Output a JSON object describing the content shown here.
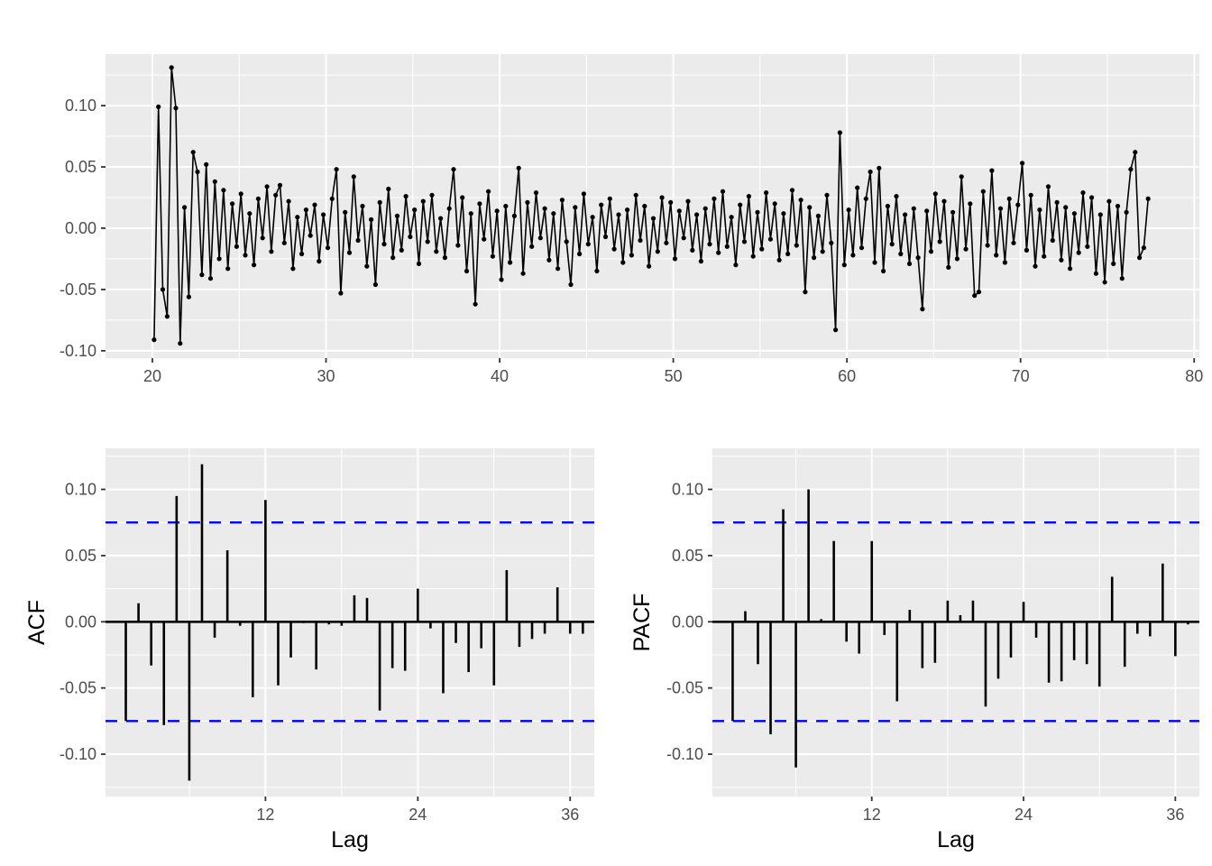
{
  "figure": {
    "background": "#FFFFFF",
    "panel_background": "#EBEBEB",
    "grid_major_color": "#FFFFFF",
    "grid_minor_color": "#F7F7F7",
    "series_color": "#000000",
    "conf_band_color": "#0000FF",
    "axis_text_color": "#4D4D4D",
    "axis_title_color": "#000000",
    "tick_mark_color": "#333333"
  },
  "chart_data": [
    {
      "name": "residual-series",
      "type": "line",
      "title": "",
      "xlabel": "",
      "ylabel": "",
      "marker": "point",
      "xlim": [
        17.3,
        80.3
      ],
      "ylim": [
        -0.106,
        0.142
      ],
      "x_ticks": {
        "values": [
          20,
          30,
          40,
          50,
          60,
          70,
          80
        ],
        "labels": [
          "20",
          "30",
          "40",
          "50",
          "60",
          "70",
          "80"
        ]
      },
      "x_minor": [
        25,
        35,
        45,
        55,
        65,
        75
      ],
      "y_ticks": {
        "values": [
          0.1,
          0.05,
          0.0,
          -0.05,
          -0.1
        ],
        "labels": [
          "0.10",
          "0.05",
          "0.00",
          "-0.05",
          "-0.10"
        ]
      },
      "y_minor": [
        0.125,
        0.075,
        0.025,
        -0.025,
        -0.075
      ],
      "x_start": 20.1,
      "x_step": 0.25,
      "values": [
        -0.091,
        0.099,
        -0.05,
        -0.072,
        0.131,
        0.098,
        -0.094,
        0.017,
        -0.056,
        0.062,
        0.046,
        -0.038,
        0.052,
        -0.041,
        0.038,
        -0.025,
        0.031,
        -0.033,
        0.02,
        -0.015,
        0.028,
        -0.022,
        0.012,
        -0.03,
        0.024,
        -0.008,
        0.034,
        -0.019,
        0.027,
        0.035,
        -0.012,
        0.022,
        -0.033,
        0.009,
        -0.021,
        0.015,
        -0.006,
        0.019,
        -0.027,
        0.011,
        -0.016,
        0.024,
        0.048,
        -0.053,
        0.013,
        -0.02,
        0.042,
        -0.01,
        0.018,
        -0.031,
        0.007,
        -0.046,
        0.021,
        -0.013,
        0.032,
        -0.024,
        0.01,
        -0.018,
        0.026,
        -0.007,
        0.015,
        -0.029,
        0.022,
        -0.011,
        0.027,
        -0.019,
        0.008,
        -0.024,
        0.016,
        0.048,
        -0.014,
        0.025,
        -0.035,
        0.012,
        -0.062,
        0.02,
        -0.009,
        0.03,
        -0.023,
        0.014,
        -0.042,
        0.018,
        -0.028,
        0.01,
        0.049,
        -0.037,
        0.021,
        -0.015,
        0.029,
        -0.008,
        0.016,
        -0.026,
        0.012,
        -0.033,
        0.023,
        -0.011,
        -0.046,
        0.017,
        -0.021,
        0.028,
        -0.013,
        0.009,
        -0.035,
        0.019,
        -0.007,
        0.024,
        -0.017,
        0.011,
        -0.028,
        0.015,
        -0.022,
        0.027,
        -0.01,
        0.018,
        -0.031,
        0.008,
        -0.019,
        0.025,
        -0.012,
        0.021,
        -0.025,
        0.014,
        -0.008,
        0.022,
        -0.018,
        0.011,
        -0.027,
        0.016,
        -0.013,
        0.024,
        -0.02,
        0.03,
        -0.015,
        0.009,
        -0.03,
        0.019,
        -0.011,
        0.026,
        -0.023,
        0.013,
        -0.017,
        0.029,
        -0.009,
        0.02,
        -0.026,
        0.012,
        -0.021,
        0.031,
        -0.014,
        0.023,
        -0.052,
        0.017,
        -0.024,
        0.01,
        -0.019,
        0.027,
        -0.012,
        -0.083,
        0.078,
        -0.03,
        0.015,
        -0.022,
        0.033,
        -0.016,
        0.024,
        0.046,
        -0.028,
        0.049,
        -0.035,
        0.018,
        -0.013,
        0.026,
        -0.021,
        0.011,
        -0.029,
        0.016,
        -0.024,
        -0.066,
        0.014,
        -0.019,
        0.028,
        -0.011,
        0.022,
        -0.032,
        0.013,
        -0.025,
        0.042,
        -0.017,
        0.02,
        -0.055,
        -0.052,
        0.03,
        -0.014,
        0.047,
        -0.022,
        0.016,
        -0.028,
        0.024,
        -0.012,
        0.019,
        0.053,
        -0.018,
        0.027,
        -0.031,
        0.015,
        -0.023,
        0.034,
        -0.01,
        0.021,
        -0.026,
        0.017,
        -0.033,
        0.012,
        -0.02,
        0.029,
        -0.015,
        0.025,
        -0.037,
        0.011,
        -0.044,
        0.022,
        -0.029,
        0.018,
        -0.041,
        0.013,
        0.048,
        0.062,
        -0.024,
        -0.016,
        0.024
      ]
    },
    {
      "name": "acf",
      "type": "bar",
      "title": "",
      "xlabel": "Lag",
      "ylabel": "ACF",
      "xlim": [
        -0.6,
        37.9
      ],
      "ylim": [
        -0.132,
        0.131
      ],
      "x_ticks": {
        "values": [
          12,
          24,
          36
        ],
        "labels": [
          "12",
          "24",
          "36"
        ]
      },
      "x_minor": [
        6,
        18,
        30
      ],
      "y_ticks": {
        "values": [
          0.1,
          0.05,
          0.0,
          -0.05,
          -0.1
        ],
        "labels": [
          "0.10",
          "0.05",
          "0.00",
          "-0.05",
          "-0.10"
        ]
      },
      "y_minor": [
        0.125,
        0.075,
        0.025,
        -0.025,
        -0.075,
        -0.125
      ],
      "conf_band": 0.075,
      "lag_start": 1,
      "values": [
        -0.075,
        0.014,
        -0.033,
        -0.078,
        0.095,
        -0.12,
        0.119,
        -0.012,
        0.054,
        -0.003,
        -0.057,
        0.092,
        -0.048,
        -0.027,
        -0.001,
        -0.036,
        -0.002,
        -0.003,
        0.02,
        0.018,
        -0.067,
        -0.035,
        -0.037,
        0.025,
        -0.005,
        -0.054,
        -0.016,
        -0.038,
        -0.02,
        -0.048,
        0.039,
        -0.019,
        -0.013,
        -0.009,
        0.026,
        -0.009,
        -0.009
      ]
    },
    {
      "name": "pacf",
      "type": "bar",
      "title": "",
      "xlabel": "Lag",
      "ylabel": "PACF",
      "xlim": [
        -0.6,
        37.9
      ],
      "ylim": [
        -0.132,
        0.131
      ],
      "x_ticks": {
        "values": [
          12,
          24,
          36
        ],
        "labels": [
          "12",
          "24",
          "36"
        ]
      },
      "x_minor": [
        6,
        18,
        30
      ],
      "y_ticks": {
        "values": [
          0.1,
          0.05,
          0.0,
          -0.05,
          -0.1
        ],
        "labels": [
          "0.10",
          "0.05",
          "0.00",
          "-0.05",
          "-0.10"
        ]
      },
      "y_minor": [
        0.125,
        0.075,
        0.025,
        -0.025,
        -0.075,
        -0.125
      ],
      "conf_band": 0.075,
      "lag_start": 1,
      "values": [
        -0.075,
        0.008,
        -0.032,
        -0.085,
        0.085,
        -0.11,
        0.1,
        0.002,
        0.061,
        -0.015,
        -0.024,
        0.061,
        -0.01,
        -0.06,
        0.009,
        -0.035,
        -0.031,
        0.016,
        0.005,
        0.016,
        -0.064,
        -0.043,
        -0.027,
        0.015,
        -0.012,
        -0.046,
        -0.045,
        -0.029,
        -0.032,
        -0.049,
        0.034,
        -0.034,
        -0.009,
        -0.011,
        0.044,
        -0.026,
        -0.002
      ]
    }
  ]
}
